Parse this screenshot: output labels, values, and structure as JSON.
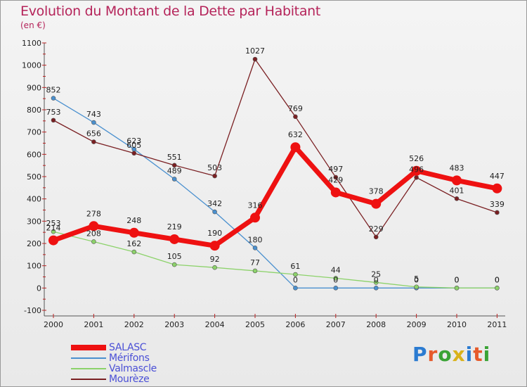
{
  "title": "Evolution du Montant de la Dette par Habitant",
  "unit": "(en €)",
  "brand": {
    "text": "Proxiti",
    "letter_colors": [
      "#2b7bd1",
      "#e65a2b",
      "#3aa335",
      "#d9b21a",
      "#2b7bd1",
      "#e65a2b",
      "#3aa335"
    ]
  },
  "chart_data": {
    "type": "line",
    "title": "Evolution du Montant de la Dette par Habitant",
    "ylabel": "(en €)",
    "xlabel": "",
    "x": [
      "2000",
      "2001",
      "2002",
      "2003",
      "2004",
      "2005",
      "2006",
      "2007",
      "2008",
      "2009",
      "2010",
      "2011"
    ],
    "ylim": [
      -100,
      1100
    ],
    "yticks": [
      -100,
      0,
      100,
      200,
      300,
      400,
      500,
      600,
      700,
      800,
      900,
      1000,
      1100
    ],
    "grid": false,
    "legend_position": "bottom-left",
    "series": [
      {
        "name": "SALASC",
        "color": "#ee1111",
        "values": [
          214,
          278,
          248,
          219,
          190,
          316,
          632,
          429,
          378,
          526,
          483,
          447
        ]
      },
      {
        "name": "Mérifons",
        "color": "#4a90cf",
        "values": [
          852,
          743,
          623,
          489,
          342,
          180,
          0,
          0,
          0,
          0,
          0,
          0
        ]
      },
      {
        "name": "Valmascle",
        "color": "#8cd26a",
        "values": [
          253,
          208,
          162,
          105,
          92,
          77,
          61,
          44,
          25,
          5,
          0,
          0
        ]
      },
      {
        "name": "Mourèze",
        "color": "#7a1f22",
        "values": [
          753,
          656,
          605,
          551,
          503,
          1027,
          769,
          497,
          229,
          496,
          401,
          339
        ]
      }
    ]
  }
}
